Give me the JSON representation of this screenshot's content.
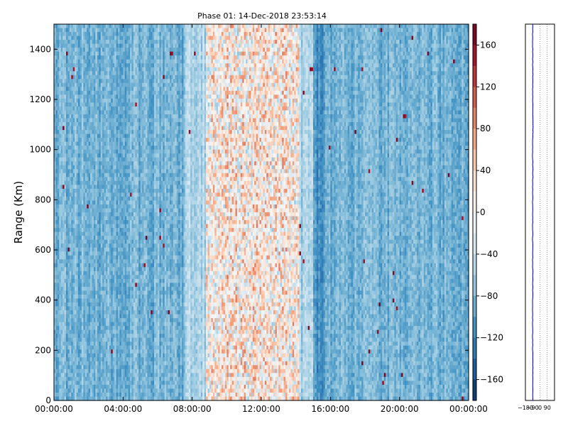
{
  "chart_data": [
    {
      "type": "heatmap",
      "title": "Phase 01: 14-Dec-2018 23:53:14",
      "xlabel": "",
      "ylabel": "Range (Km)",
      "x_ticks": [
        "00:00:00",
        "04:00:00",
        "08:00:00",
        "12:00:00",
        "16:00:00",
        "20:00:00",
        "00:00:00"
      ],
      "x_range_hours": [
        0,
        24
      ],
      "y_ticks": [
        0,
        200,
        400,
        600,
        800,
        1000,
        1200,
        1400
      ],
      "ylim": [
        0,
        1500
      ],
      "colorbar": {
        "ticks": [
          160,
          120,
          80,
          40,
          0,
          -40,
          -80,
          -120,
          -160
        ],
        "range": [
          -180,
          180
        ],
        "colormap": "RdBu_r",
        "colors": {
          "high": "#67001f",
          "mid": "#f7f7f7",
          "low": "#053061"
        }
      },
      "background_level": -85,
      "band_profile": [
        {
          "start_hour": 0.0,
          "end_hour": 7.6,
          "level": -85
        },
        {
          "start_hour": 7.6,
          "end_hour": 8.8,
          "level": -55
        },
        {
          "start_hour": 8.8,
          "end_hour": 14.2,
          "level": 15
        },
        {
          "start_hour": 14.2,
          "end_hour": 15.0,
          "level": -60
        },
        {
          "start_hour": 15.0,
          "end_hour": 15.6,
          "level": -110
        },
        {
          "start_hour": 15.6,
          "end_hour": 24.0,
          "level": -85
        }
      ],
      "grid": false
    },
    {
      "type": "line",
      "title": "",
      "x_ticks": [
        "-180",
        "-90",
        "0",
        "90"
      ],
      "xlim": [
        -180,
        180
      ],
      "ylim": [
        0,
        1500
      ],
      "grid": true,
      "series_color": "#0000cc",
      "y": [
        0,
        100,
        200,
        300,
        400,
        500,
        600,
        700,
        800,
        900,
        1000,
        1100,
        1200,
        1300,
        1400,
        1500
      ],
      "x": [
        -90,
        -88,
        -90,
        -92,
        -90,
        -89,
        -90,
        -91,
        -90,
        -88,
        -91,
        -85,
        -90,
        -89,
        -90,
        -90
      ]
    }
  ]
}
